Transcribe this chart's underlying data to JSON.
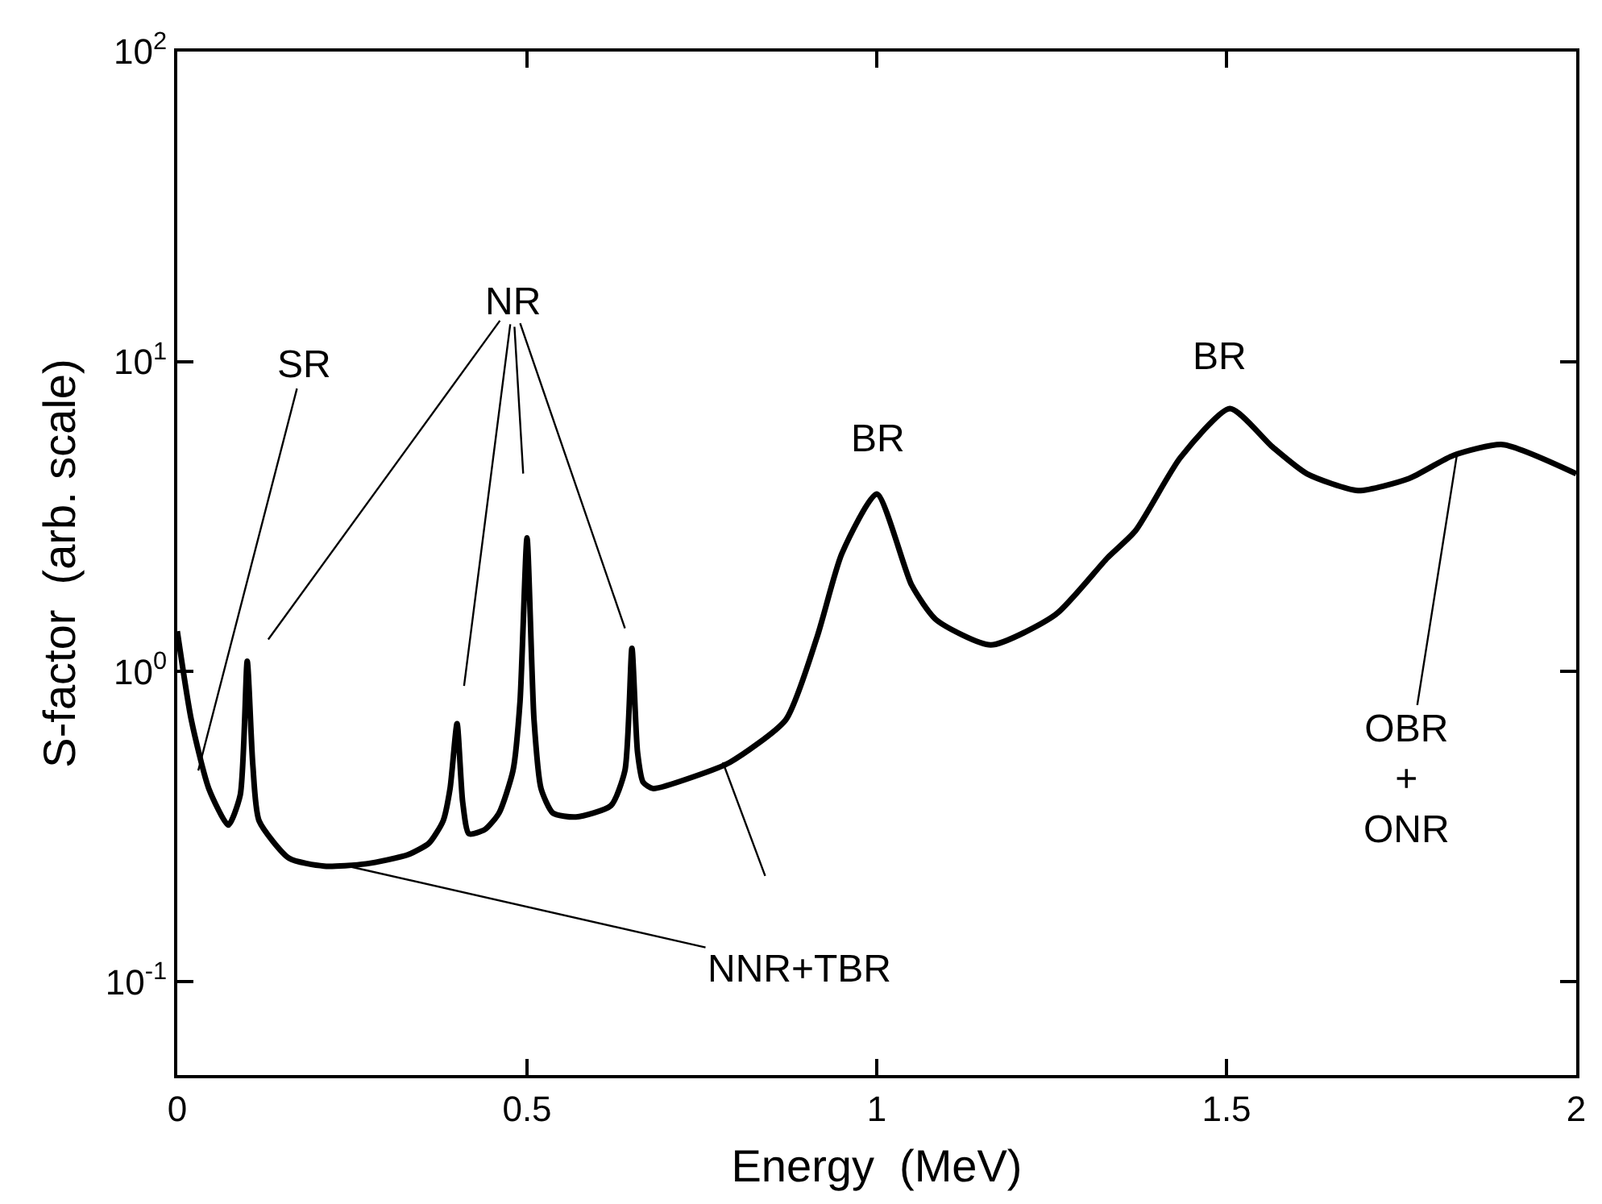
{
  "chart_data": {
    "type": "line",
    "xlabel": "Energy  (MeV)",
    "ylabel": "S-factor  (arb. scale)",
    "log": "y",
    "marker": "none",
    "line_style": "solid",
    "xlim": [
      0,
      2
    ],
    "xticks": [
      0,
      0.5,
      1,
      1.5,
      2
    ],
    "ylim": [
      0.05,
      100
    ],
    "yticks": [
      {
        "value": 0.1,
        "label": "10$^{-1}$"
      },
      {
        "value": 1,
        "label": "10$^{0}$"
      },
      {
        "value": 10,
        "label": "10$^{1}$"
      },
      {
        "value": 100,
        "label": "10$^{2}$"
      }
    ],
    "x": [
      0,
      0.02,
      0.045,
      0.073,
      0.09,
      0.1,
      0.108,
      0.117,
      0.16,
      0.21,
      0.27,
      0.33,
      0.36,
      0.38,
      0.39,
      0.4,
      0.408,
      0.417,
      0.44,
      0.46,
      0.48,
      0.49,
      0.5,
      0.51,
      0.52,
      0.537,
      0.57,
      0.62,
      0.64,
      0.65,
      0.658,
      0.666,
      0.68,
      0.74,
      0.79,
      0.87,
      0.915,
      0.95,
      1.0,
      1.05,
      1.085,
      1.163,
      1.256,
      1.33,
      1.37,
      1.434,
      1.505,
      1.566,
      1.615,
      1.688,
      1.761,
      1.824,
      1.895,
      2.0
    ],
    "series": [
      {
        "color": "#000000",
        "values": [
          1.35,
          0.7,
          0.42,
          0.32,
          0.4,
          1.08,
          0.5,
          0.33,
          0.25,
          0.236,
          0.24,
          0.257,
          0.28,
          0.33,
          0.42,
          0.68,
          0.38,
          0.3,
          0.31,
          0.35,
          0.48,
          0.8,
          2.7,
          0.7,
          0.42,
          0.35,
          0.34,
          0.37,
          0.48,
          1.19,
          0.55,
          0.44,
          0.42,
          0.46,
          0.51,
          0.7,
          1.3,
          2.4,
          3.74,
          1.9,
          1.47,
          1.22,
          1.53,
          2.33,
          2.85,
          4.9,
          7.06,
          5.3,
          4.35,
          3.84,
          4.2,
          4.98,
          5.4,
          4.35
        ]
      }
    ],
    "annotations": [
      {
        "text": "SR",
        "x": 0.03,
        "y": 0.48
      },
      {
        "text": "NR",
        "x": 0.5,
        "y": 2.7
      },
      {
        "text": "BR",
        "x": 1.0,
        "y": 3.74
      },
      {
        "text": "BR",
        "x": 1.505,
        "y": 7.06
      },
      {
        "text": "NNR+TBR",
        "x": 0.244,
        "y": 0.236
      },
      {
        "text": "OBR\n+\nONR",
        "x": 1.83,
        "y": 5.1
      }
    ]
  }
}
